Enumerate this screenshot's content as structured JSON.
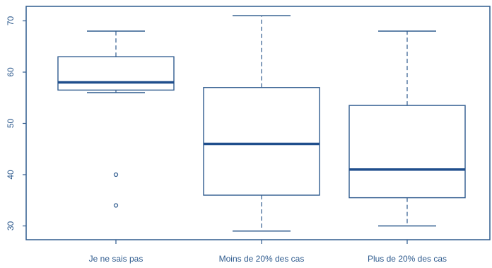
{
  "chart_data": {
    "type": "boxplot",
    "title": "",
    "xlabel": "",
    "ylabel": "",
    "ylim": [
      27.5,
      73.5
    ],
    "y_ticks": [
      30,
      40,
      50,
      60,
      70
    ],
    "grid": false,
    "legend": "none",
    "colors": {
      "stroke": "#2f5b8e",
      "median": "#1f4e8c",
      "text": "#2f5b8e"
    },
    "categories": [
      "Je ne sais pas",
      "Moins de 20% des cas",
      "Plus de 20% des cas"
    ],
    "boxes": [
      {
        "category": "Je ne sais pas",
        "whisker_low": 56,
        "q1": 56.5,
        "median": 58,
        "q3": 63,
        "whisker_high": 68,
        "outliers": [
          40,
          34
        ]
      },
      {
        "category": "Moins de 20% des cas",
        "whisker_low": 29,
        "q1": 36,
        "median": 46,
        "q3": 57,
        "whisker_high": 71,
        "outliers": []
      },
      {
        "category": "Plus de 20% des cas",
        "whisker_low": 30,
        "q1": 35.5,
        "median": 41,
        "q3": 53.5,
        "whisker_high": 68,
        "outliers": []
      }
    ]
  }
}
